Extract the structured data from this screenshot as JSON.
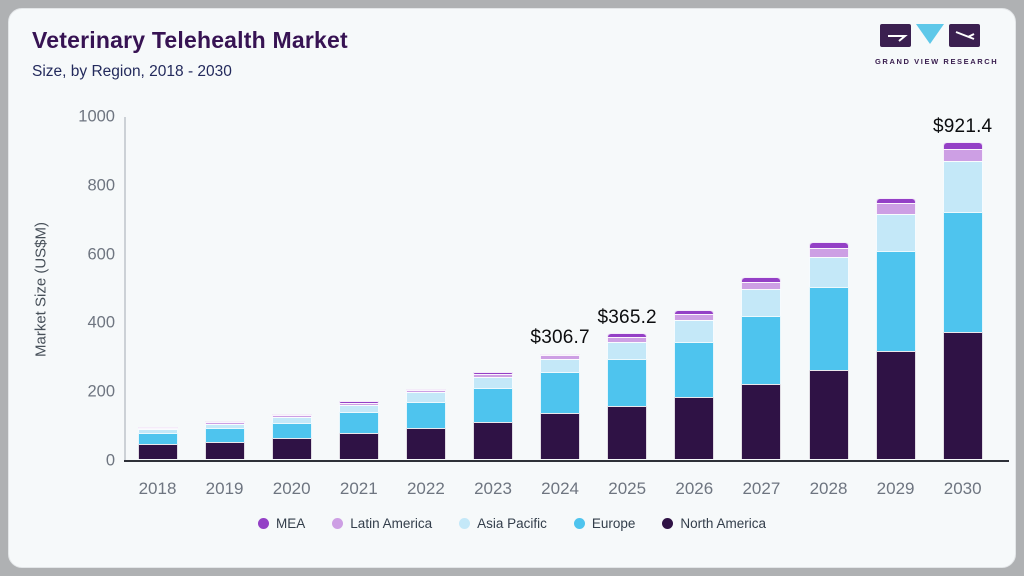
{
  "header": {
    "title": "Veterinary Telehealth Market",
    "subtitle": "Size, by Region, 2018 - 2030",
    "logo_text": "GRAND VIEW RESEARCH"
  },
  "colors": {
    "card_background": "#f6f9fa",
    "frame_background": "#afb1b3",
    "title_text": "#371353",
    "subtitle_text": "#232a5c",
    "axis_text": "#6e7580",
    "data_label_text": "#0c0d0f",
    "logo_purple": "#3b2050",
    "logo_blue": "#5ec8e9"
  },
  "chart_data": {
    "type": "bar",
    "stacked": true,
    "title": "Veterinary Telehealth Market Size, by Region, 2018 - 2030",
    "xlabel": "",
    "ylabel": "Market Size (US$M)",
    "ylim": [
      0,
      1000
    ],
    "yticks": [
      0,
      200,
      400,
      600,
      800,
      1000
    ],
    "grid": false,
    "legend_position": "bottom",
    "categories": [
      "2018",
      "2019",
      "2020",
      "2021",
      "2022",
      "2023",
      "2024",
      "2025",
      "2026",
      "2027",
      "2028",
      "2029",
      "2030"
    ],
    "series": [
      {
        "name": "MEA",
        "color": "#9440c6",
        "values": [
          2.5,
          3,
          3,
          4,
          4,
          5,
          5.7,
          9.2,
          11,
          14,
          16,
          17,
          20.4
        ]
      },
      {
        "name": "Latin America",
        "color": "#cd9fe4",
        "values": [
          3.5,
          4,
          5,
          6,
          7,
          9,
          11,
          15,
          18,
          21,
          26,
          30,
          34
        ]
      },
      {
        "name": "Asia Pacific",
        "color": "#c4e8f8",
        "values": [
          10,
          13,
          16,
          22,
          27,
          32,
          38,
          50,
          64,
          76,
          88,
          109,
          149
        ]
      },
      {
        "name": "Europe",
        "color": "#4ec4ee",
        "values": [
          33,
          40,
          46,
          60,
          77,
          99,
          118,
          138,
          161,
          199,
          242,
          290,
          348
        ]
      },
      {
        "name": "North America",
        "color": "#2f1245",
        "values": [
          44,
          50,
          60,
          76,
          90,
          107,
          134,
          153,
          180,
          218,
          258,
          314,
          370
        ]
      }
    ],
    "stack_order_bottom_to_top": [
      "North America",
      "Europe",
      "Asia Pacific",
      "Latin America",
      "MEA"
    ],
    "totals": [
      93,
      110,
      130,
      168,
      205,
      252,
      306.7,
      365.2,
      434,
      528,
      630,
      760,
      921.4
    ],
    "data_labels": [
      "",
      "",
      "",
      "",
      "",
      "",
      "$306.7",
      "$365.2",
      "",
      "",
      "",
      "",
      "$921.4"
    ]
  }
}
